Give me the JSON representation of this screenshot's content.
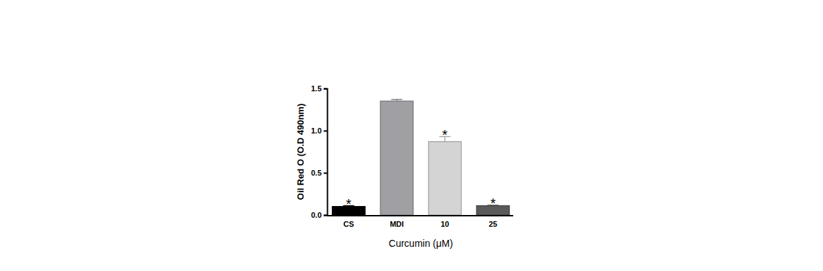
{
  "chart_data": {
    "type": "bar",
    "categories": [
      "CS",
      "MDI",
      "10",
      "25"
    ],
    "values": [
      0.1,
      1.35,
      0.87,
      0.11
    ],
    "errors": [
      0.01,
      0.02,
      0.06,
      0.005
    ],
    "annotations": [
      "*",
      null,
      "*",
      "*"
    ],
    "colors": [
      "#000000",
      "#a0a0a4",
      "#d4d4d4",
      "#5a5a5a"
    ],
    "y_label": "Oil Red O (O.D 490nm)",
    "x_label": "Curcumin (μM)",
    "ylim": [
      0,
      1.5
    ],
    "yticks": [
      {
        "value": 0,
        "label": "0.0"
      },
      {
        "value": 0.5,
        "label": "0.5"
      },
      {
        "value": 1.0,
        "label": "1.0"
      },
      {
        "value": 1.5,
        "label": "1.5"
      }
    ],
    "grid": false
  }
}
